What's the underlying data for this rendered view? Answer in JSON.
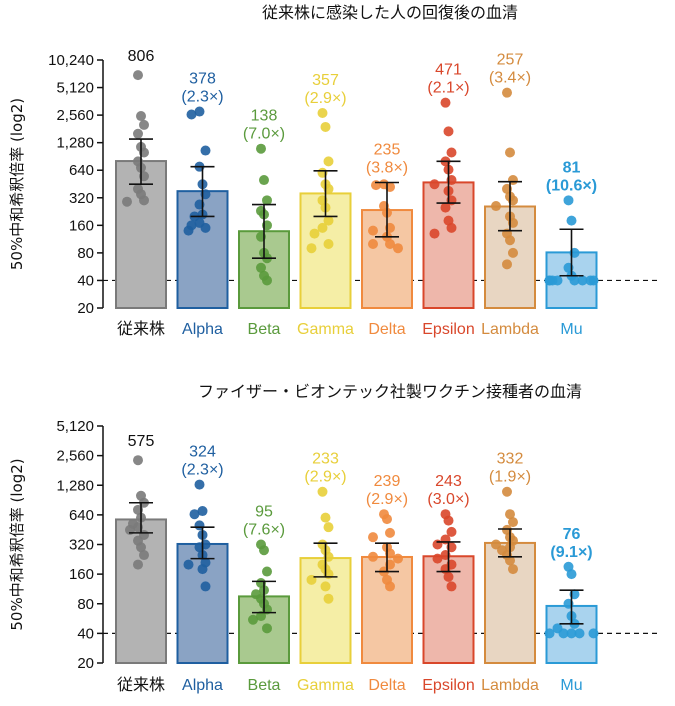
{
  "chart_data": [
    {
      "type": "bar",
      "title": "従来株に感染した人の回復後の血清",
      "ylabel": "50%中和希釈倍率 (log2)",
      "yscale": "log2",
      "ylim": [
        20,
        10240
      ],
      "yticks": [
        20,
        40,
        80,
        160,
        320,
        640,
        1280,
        2560,
        5120,
        10240
      ],
      "ytick_labels": [
        "20",
        "40",
        "80",
        "160",
        "320",
        "640",
        "1,280",
        "2,560",
        "5,120",
        "10,240"
      ],
      "reference_line": 40,
      "categories": [
        "従来株",
        "Alpha",
        "Beta",
        "Gamma",
        "Delta",
        "Epsilon",
        "Lambda",
        "Mu"
      ],
      "values": [
        806,
        378,
        138,
        357,
        235,
        471,
        257,
        81
      ],
      "value_labels": [
        "806",
        "378",
        "138",
        "357",
        "235",
        "471",
        "257",
        "81"
      ],
      "fold_labels": [
        "",
        "(2.3×)",
        "(7.0×)",
        "(2.9×)",
        "(3.8×)",
        "(2.1×)",
        "(3.4×)",
        "(10.6×)"
      ],
      "error_low": [
        450,
        200,
        70,
        200,
        120,
        280,
        140,
        45
      ],
      "error_high": [
        1400,
        700,
        270,
        630,
        470,
        800,
        480,
        145
      ],
      "points": [
        [
          7000,
          2500,
          2000,
          1600,
          1150,
          1000,
          800,
          680,
          550,
          400,
          350,
          300,
          290
        ],
        [
          2800,
          2600,
          1050,
          700,
          450,
          350,
          270,
          210,
          200,
          170,
          160,
          150,
          140
        ],
        [
          1100,
          500,
          300,
          230,
          210,
          160,
          120,
          80,
          70,
          55,
          45,
          40
        ],
        [
          2700,
          1900,
          800,
          600,
          450,
          400,
          300,
          250,
          180,
          150,
          130,
          100,
          90
        ],
        [
          450,
          440,
          420,
          260,
          220,
          150,
          140,
          120,
          100,
          100,
          90
        ],
        [
          3500,
          1700,
          1000,
          800,
          650,
          500,
          450,
          380,
          300,
          250,
          180,
          150,
          130
        ],
        [
          4500,
          1000,
          500,
          400,
          330,
          300,
          260,
          200,
          170,
          130,
          110,
          80,
          60
        ],
        [
          300,
          180,
          80,
          55,
          45,
          40,
          40,
          40,
          40,
          40,
          40,
          40,
          40
        ]
      ],
      "colors": [
        "#7a7a7a",
        "#1f5fa0",
        "#5a9a3c",
        "#e8cf3a",
        "#f08a3e",
        "#d9472b",
        "#d48b3e",
        "#2a9ad6"
      ],
      "fills": [
        "#b3b3b3",
        "#8aa3c4",
        "#a9c98f",
        "#f5eea6",
        "#f5c7a3",
        "#eeb7ab",
        "#e8d6c2",
        "#a9d3ee"
      ],
      "label_colors": [
        "#111111",
        "#1f5fa0",
        "#5a9a3c",
        "#e8cf3a",
        "#f08a3e",
        "#d9472b",
        "#d48b3e",
        "#2a9ad6"
      ]
    },
    {
      "type": "bar",
      "title": "ファイザー・ビオンテック社製ワクチン接種者の血清",
      "ylabel": "50%中和希釈倍率 (log2)",
      "yscale": "log2",
      "ylim": [
        20,
        5120
      ],
      "yticks": [
        20,
        40,
        80,
        160,
        320,
        640,
        1280,
        2560,
        5120
      ],
      "ytick_labels": [
        "20",
        "40",
        "80",
        "160",
        "320",
        "640",
        "1,280",
        "2,560",
        "5,120"
      ],
      "reference_line": 40,
      "categories": [
        "従来株",
        "Alpha",
        "Beta",
        "Gamma",
        "Delta",
        "Epsilon",
        "Lambda",
        "Mu"
      ],
      "values": [
        575,
        324,
        95,
        233,
        239,
        243,
        332,
        76
      ],
      "value_labels": [
        "575",
        "324",
        "95",
        "233",
        "239",
        "243",
        "332",
        "76"
      ],
      "fold_labels": [
        "",
        "(2.3×)",
        "(7.6×)",
        "(2.9×)",
        "(2.9×)",
        "(3.0×)",
        "(1.9×)",
        "(9.1×)"
      ],
      "error_low": [
        420,
        230,
        65,
        150,
        170,
        170,
        240,
        50
      ],
      "error_high": [
        850,
        480,
        135,
        330,
        330,
        340,
        460,
        110
      ],
      "points": [
        [
          2300,
          1000,
          850,
          720,
          600,
          520,
          480,
          450,
          400,
          350,
          300,
          250,
          200
        ],
        [
          1300,
          700,
          650,
          500,
          400,
          320,
          300,
          250,
          210,
          200,
          180,
          120
        ],
        [
          320,
          280,
          170,
          130,
          110,
          100,
          90,
          80,
          70,
          60,
          55,
          45
        ],
        [
          1100,
          600,
          480,
          320,
          280,
          240,
          200,
          180,
          160,
          140,
          120,
          90
        ],
        [
          650,
          580,
          420,
          380,
          300,
          260,
          240,
          230,
          200,
          170,
          140,
          120
        ],
        [
          650,
          560,
          430,
          360,
          320,
          300,
          250,
          230,
          200,
          180,
          150,
          120
        ],
        [
          1100,
          650,
          540,
          450,
          380,
          350,
          320,
          300,
          280,
          250,
          220,
          180
        ],
        [
          190,
          160,
          100,
          80,
          60,
          50,
          45,
          40,
          40,
          40,
          40,
          40
        ]
      ],
      "colors": [
        "#7a7a7a",
        "#1f5fa0",
        "#5a9a3c",
        "#e8cf3a",
        "#f08a3e",
        "#d9472b",
        "#d48b3e",
        "#2a9ad6"
      ],
      "fills": [
        "#b3b3b3",
        "#8aa3c4",
        "#a9c98f",
        "#f5eea6",
        "#f5c7a3",
        "#eeb7ab",
        "#e8d6c2",
        "#a9d3ee"
      ],
      "label_colors": [
        "#111111",
        "#1f5fa0",
        "#5a9a3c",
        "#e8cf3a",
        "#f08a3e",
        "#d9472b",
        "#d48b3e",
        "#2a9ad6"
      ]
    }
  ]
}
